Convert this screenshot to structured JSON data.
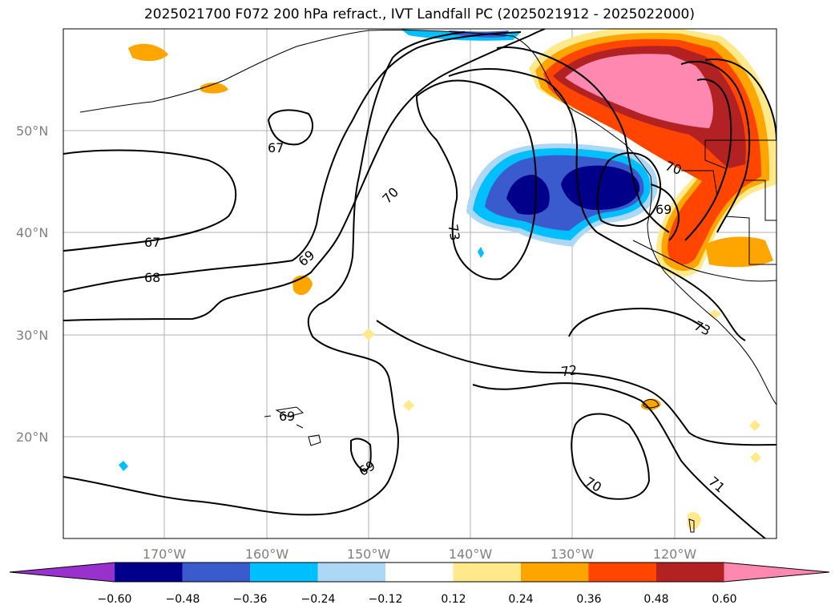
{
  "title": "2025021700 F072 200 hPa refract., IVT Landfall PC (2025021912 - 2025022000)",
  "lat_labels": [
    "50°N",
    "40°N",
    "30°N",
    "20°N"
  ],
  "lon_labels": [
    "170°W",
    "160°W",
    "150°W",
    "140°W",
    "130°W",
    "120°W"
  ],
  "contour_labels": [
    "67",
    "67",
    "68",
    "69",
    "70",
    "73",
    "70",
    "69",
    "73",
    "72",
    "69",
    "69",
    "70",
    "71"
  ],
  "colorbar": {
    "ticks": [
      "−0.60",
      "−0.48",
      "−0.36",
      "−0.24",
      "−0.12",
      "0.12",
      "0.24",
      "0.36",
      "0.48",
      "0.60"
    ],
    "colors": [
      "#9932cc",
      "#00008b",
      "#3a5bcd",
      "#00bfff",
      "#add8f5",
      "#ffffff",
      "#ffe98a",
      "#ffa500",
      "#ff4500",
      "#b22222",
      "#ff88b0"
    ]
  }
}
